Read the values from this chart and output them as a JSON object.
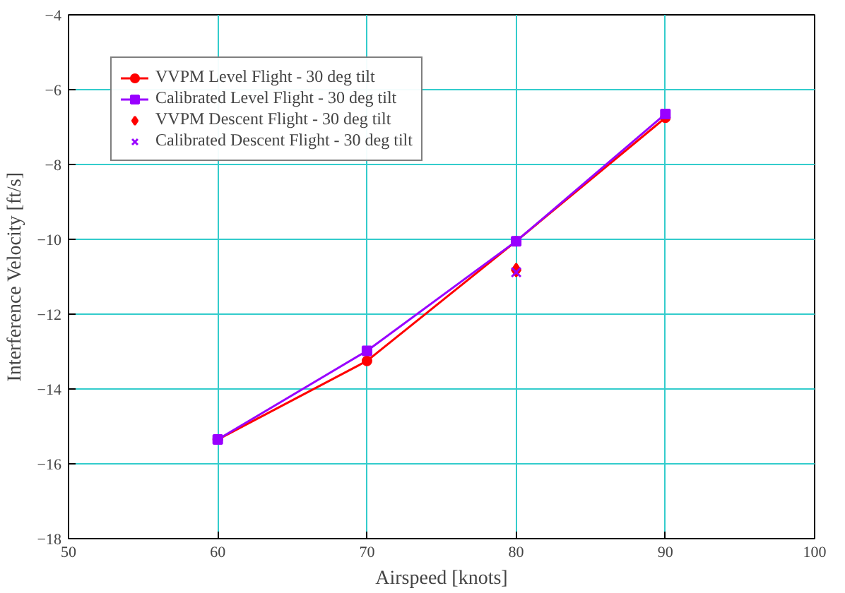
{
  "chart_data": {
    "type": "line",
    "xlabel": "Airspeed [knots]",
    "ylabel": "Interference Velocity [ft/s]",
    "x": [
      60,
      70,
      80,
      90
    ],
    "xlim": [
      50,
      100
    ],
    "xticks": [
      50,
      60,
      70,
      80,
      90,
      100
    ],
    "ylim": [
      -18,
      -4
    ],
    "yticks": [
      -18,
      -16,
      -14,
      -12,
      -10,
      -8,
      -6,
      -4
    ],
    "grid": true,
    "legend": "top left",
    "series": [
      {
        "name": "VVPM Level Flight - 30 deg tilt",
        "color": "#ff0000",
        "marker": "circle",
        "values": [
          -15.35,
          -13.25,
          -10.05,
          -6.75
        ]
      },
      {
        "name": "Calibrated Level Flight - 30 deg tilt",
        "color": "#9900ff",
        "marker": "square",
        "values": [
          -15.35,
          -12.98,
          -10.05,
          -6.65
        ]
      },
      {
        "name": "VVPM Descent Flight - 30 deg tilt",
        "color": "#ff0000",
        "type": "scatter",
        "marker": "diamond",
        "x": [
          80
        ],
        "values": [
          -10.82
        ]
      },
      {
        "name": "Calibrated Descent Flight - 30 deg tilt",
        "color": "#9900ff",
        "type": "scatter",
        "marker": "cross",
        "x": [
          80
        ],
        "values": [
          -10.88
        ]
      }
    ]
  }
}
